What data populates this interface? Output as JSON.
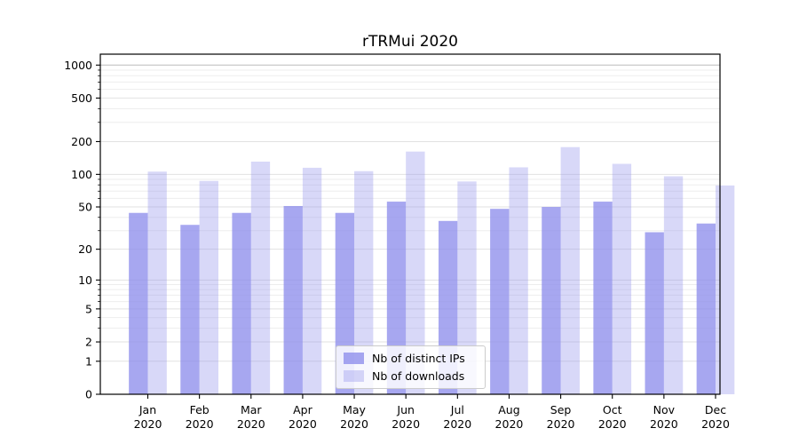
{
  "title": "rTRMui 2020",
  "legend": {
    "items": [
      {
        "label": "Nb of distinct IPs",
        "color": "rgba(138,138,235,0.75)"
      },
      {
        "label": "Nb of downloads",
        "color": "rgba(144,144,235,0.35)"
      }
    ]
  },
  "chart_data": {
    "type": "bar",
    "title": "rTRMui 2020",
    "xlabel": "",
    "ylabel": "",
    "scale": "log10(1+x) (symlog-like, includes 0)",
    "categories": [
      "Jan",
      "Feb",
      "Mar",
      "Apr",
      "May",
      "Jun",
      "Jul",
      "Aug",
      "Sep",
      "Oct",
      "Nov",
      "Dec"
    ],
    "year_label": "2020",
    "series": [
      {
        "name": "Nb of distinct IPs",
        "color": "rgba(138,138,235,0.75)",
        "values": [
          44,
          34,
          44,
          51,
          44,
          56,
          37,
          48,
          50,
          56,
          29,
          35
        ]
      },
      {
        "name": "Nb of downloads",
        "color": "rgba(144,144,235,0.35)",
        "values": [
          106,
          87,
          131,
          115,
          107,
          162,
          86,
          116,
          178,
          125,
          96,
          79
        ]
      }
    ],
    "y_ticks": [
      0,
      1,
      2,
      5,
      10,
      20,
      50,
      100,
      200,
      500,
      1000
    ],
    "y_minor_ticks": [
      3,
      4,
      6,
      7,
      8,
      9,
      30,
      40,
      60,
      70,
      80,
      90,
      300,
      400,
      600,
      700,
      800,
      900
    ],
    "ylim": [
      0,
      1257
    ],
    "grid": true,
    "legend_position": "inside bottom-center"
  }
}
